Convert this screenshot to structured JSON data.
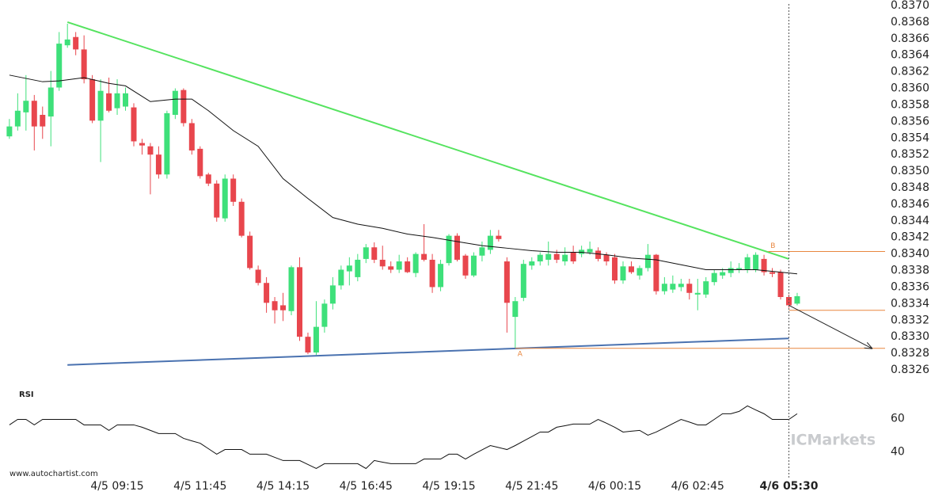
{
  "chart_data": {
    "type": "candlestick",
    "categories": [
      null,
      null,
      null,
      null,
      null,
      null,
      null,
      null,
      null,
      null,
      null,
      null,
      null,
      "4/5 09:15",
      null,
      null,
      null,
      null,
      null,
      null,
      null,
      null,
      null,
      "4/5 11:45",
      null,
      null,
      null,
      null,
      null,
      null,
      null,
      null,
      null,
      "4/5 14:15",
      null,
      null,
      null,
      null,
      null,
      null,
      null,
      null,
      null,
      "4/5 16:45",
      null,
      null,
      null,
      null,
      null,
      null,
      null,
      null,
      null,
      "4/5 19:15",
      null,
      null,
      null,
      null,
      null,
      null,
      null,
      null,
      null,
      "4/5 21:45",
      null,
      null,
      null,
      null,
      null,
      null,
      null,
      null,
      null,
      "4/6 00:15",
      null,
      null,
      null,
      null,
      null,
      null,
      null,
      null,
      null,
      "4/6 02:45",
      null,
      null,
      null,
      null,
      null,
      null,
      null,
      null,
      null,
      null,
      "4/6 05:30",
      null
    ],
    "open": [
      0.83542,
      0.83554,
      0.83571,
      0.83585,
      0.83568,
      0.83566,
      0.83601,
      0.83652,
      0.83662,
      0.83647,
      0.83611,
      0.83561,
      0.83594,
      0.83576,
      0.83578,
      0.83577,
      0.83534,
      0.8353,
      0.8352,
      0.83496,
      0.83568,
      0.83598,
      0.83558,
      0.83527,
      0.83496,
      0.83485,
      0.83443,
      0.83491,
      0.83463,
      0.83422,
      0.83381,
      0.83365,
      0.83343,
      0.83338,
      0.83331,
      0.83384,
      0.833,
      0.83281,
      0.83312,
      0.8334,
      0.83362,
      0.83379,
      0.83372,
      0.83394,
      0.83408,
      0.83393,
      0.83385,
      0.83381,
      0.83391,
      0.83377,
      0.834,
      0.83393,
      0.8336,
      0.83389,
      0.83422,
      0.83398,
      0.83374,
      0.83398,
      0.83405,
      0.83422,
      0.83391,
      0.83324,
      0.83347,
      0.83386,
      0.83391,
      0.83393,
      0.834,
      0.83391,
      0.83402,
      0.834,
      0.83402,
      0.83404,
      0.83399,
      0.83396,
      0.83368,
      0.83385,
      0.83374,
      0.83383,
      0.83399,
      0.83355,
      0.83357,
      0.8336,
      0.83364,
      0.83351,
      0.83351,
      0.83366,
      0.83374,
      0.83377,
      0.83381,
      0.83381,
      0.83381,
      0.83394,
      0.83378,
      0.83378,
      0.83348,
      0.8334
    ],
    "high": [
      0.83563,
      0.83594,
      0.83616,
      0.83592,
      0.83578,
      0.83621,
      0.83668,
      0.83678,
      0.83668,
      0.83664,
      0.83616,
      0.83611,
      0.83613,
      0.83611,
      0.83601,
      0.83582,
      0.83539,
      0.83534,
      0.8353,
      0.83573,
      0.836,
      0.836,
      0.83563,
      0.8353,
      0.83498,
      0.83489,
      0.83496,
      0.83496,
      0.83467,
      0.83427,
      0.83386,
      0.83372,
      0.83348,
      0.83353,
      0.83386,
      0.83396,
      0.83305,
      0.83343,
      0.83345,
      0.83372,
      0.83386,
      0.83396,
      0.834,
      0.83412,
      0.83414,
      0.8341,
      0.83391,
      0.83399,
      0.83396,
      0.83402,
      0.83436,
      0.834,
      0.83393,
      0.83424,
      0.83425,
      0.834,
      0.83402,
      0.83415,
      0.83429,
      0.83429,
      0.83396,
      0.83348,
      0.83393,
      0.83396,
      0.83402,
      0.83415,
      0.83405,
      0.83408,
      0.8341,
      0.8341,
      0.83415,
      0.83408,
      0.83402,
      0.834,
      0.83391,
      0.83391,
      0.83386,
      0.83412,
      0.834,
      0.83372,
      0.83374,
      0.8337,
      0.8337,
      0.8337,
      0.83372,
      0.83381,
      0.83383,
      0.83391,
      0.83389,
      0.834,
      0.83402,
      0.83399,
      0.83383,
      0.83381,
      0.83351,
      0.83353
    ],
    "low": [
      0.83539,
      0.83549,
      0.83549,
      0.83525,
      0.83539,
      0.8353,
      0.83597,
      0.83649,
      0.8364,
      0.83606,
      0.83558,
      0.83511,
      0.83571,
      0.83568,
      0.83573,
      0.8353,
      0.8352,
      0.83472,
      0.83491,
      0.83491,
      0.83563,
      0.83554,
      0.8352,
      0.83491,
      0.83482,
      0.83439,
      0.83439,
      0.83458,
      0.8342,
      0.83381,
      0.83362,
      0.83329,
      0.83316,
      0.83319,
      0.83326,
      0.83295,
      0.83279,
      0.83278,
      0.83305,
      0.83333,
      0.83357,
      0.83362,
      0.83367,
      0.83389,
      0.83389,
      0.83381,
      0.83377,
      0.83377,
      0.83377,
      0.83372,
      0.83391,
      0.83353,
      0.83355,
      0.83386,
      0.83391,
      0.8337,
      0.83372,
      0.83391,
      0.834,
      0.83415,
      0.83305,
      0.83286,
      0.83343,
      0.83381,
      0.83386,
      0.83386,
      0.83389,
      0.83386,
      0.83388,
      0.83396,
      0.83399,
      0.83391,
      0.83386,
      0.83364,
      0.83364,
      0.83376,
      0.83369,
      0.83379,
      0.83351,
      0.83351,
      0.83353,
      0.83355,
      0.83345,
      0.83332,
      0.83347,
      0.83362,
      0.8337,
      0.83372,
      0.83377,
      0.83377,
      0.83378,
      0.83374,
      0.83372,
      0.83345,
      0.83335,
      0.83338
    ],
    "close": [
      0.83554,
      0.83573,
      0.83585,
      0.83554,
      0.83554,
      0.83601,
      0.83654,
      0.83659,
      0.83647,
      0.83611,
      0.83561,
      0.83597,
      0.83573,
      0.83594,
      0.83594,
      0.83536,
      0.83531,
      0.8352,
      0.83496,
      0.8357,
      0.83597,
      0.83558,
      0.83525,
      0.83494,
      0.83485,
      0.83444,
      0.83491,
      0.83463,
      0.83422,
      0.83383,
      0.83365,
      0.83341,
      0.83332,
      0.83332,
      0.83384,
      0.833,
      0.83281,
      0.83312,
      0.8334,
      0.83362,
      0.83381,
      0.83386,
      0.83393,
      0.83408,
      0.83393,
      0.83385,
      0.83381,
      0.83391,
      0.83378,
      0.834,
      0.83393,
      0.8336,
      0.83388,
      0.83422,
      0.83393,
      0.83374,
      0.83398,
      0.83408,
      0.83422,
      0.83418,
      0.83341,
      0.83343,
      0.83388,
      0.83391,
      0.83399,
      0.834,
      0.83393,
      0.83399,
      0.83391,
      0.83405,
      0.83406,
      0.83394,
      0.83391,
      0.83368,
      0.83385,
      0.83378,
      0.83383,
      0.83399,
      0.83355,
      0.83364,
      0.83364,
      0.83364,
      0.83353,
      0.83353,
      0.83367,
      0.83377,
      0.83378,
      0.83383,
      0.83383,
      0.83396,
      0.83399,
      0.83378,
      0.83376,
      0.83348,
      0.83338,
      0.83349
    ],
    "up_color": "#3ee07a",
    "down_color": "#e8464d",
    "xlim": [
      -1,
      105.6
    ],
    "ylim": [
      0.8324,
      0.8371
    ],
    "yticks": [
      0.8326,
      0.8328,
      {
        "value": 0.833,
        "label": "0.8330"
      },
      0.8332,
      0.8334,
      0.8336,
      0.8338,
      {
        "value": 0.834,
        "label": "0.8340"
      },
      0.8342,
      0.8344,
      0.8346,
      0.8348,
      {
        "value": 0.835,
        "label": "0.8350"
      },
      0.8352,
      0.8354,
      0.8356,
      0.8358,
      {
        "value": 0.836,
        "label": "0.8360"
      },
      0.8362,
      0.8364,
      0.8366,
      0.8368,
      {
        "value": 0.837,
        "label": "0.8370"
      }
    ],
    "moving_average": {
      "color": "#111111",
      "x": [
        0,
        4,
        6,
        9,
        12,
        14,
        17,
        20,
        22,
        24,
        27,
        30,
        33,
        36,
        39,
        42,
        45,
        48,
        51,
        54,
        57,
        60,
        63,
        66,
        69,
        72,
        75,
        78,
        81,
        84,
        87,
        90,
        93,
        95
      ],
      "values": [
        0.83616,
        0.83608,
        0.83609,
        0.83613,
        0.83606,
        0.83603,
        0.83584,
        0.83587,
        0.83587,
        0.83573,
        0.83549,
        0.8353,
        0.83491,
        0.83467,
        0.83444,
        0.83436,
        0.83431,
        0.83424,
        0.8342,
        0.83415,
        0.8341,
        0.83407,
        0.83404,
        0.83402,
        0.83402,
        0.83399,
        0.83395,
        0.83393,
        0.83387,
        0.83381,
        0.83381,
        0.83381,
        0.83378,
        0.83376
      ]
    },
    "trendlines": [
      {
        "color": "#55e35f",
        "x": [
          7,
          94
        ],
        "values": [
          0.8368,
          0.83394
        ]
      },
      {
        "color": "#4a72b0",
        "x": [
          7,
          94
        ],
        "values": [
          0.83266,
          0.83298
        ]
      }
    ],
    "levels": [
      {
        "label": "A",
        "from": 61,
        "value": 0.83286,
        "color": "#e8863f"
      },
      {
        "label": "B",
        "from": 91.5,
        "value": 0.83403,
        "color": "#e8863f"
      },
      {
        "from": 94,
        "value": 0.83332,
        "color": "#e8863f"
      }
    ],
    "forecast": {
      "color": "#222222",
      "x": [
        94,
        104
      ],
      "values": [
        0.83338,
        0.83286
      ]
    },
    "rsi": {
      "title": "RSI",
      "color": "#111111",
      "ylim": [
        25,
        78.3
      ],
      "yticks": [
        40,
        60
      ],
      "values": [
        56.2,
        59.5,
        59.5,
        56.2,
        59.5,
        59.5,
        59.5,
        59.5,
        59.5,
        56.2,
        56.2,
        56.2,
        52.9,
        56.2,
        56.2,
        56.2,
        54.8,
        52.9,
        51,
        51,
        51,
        48.1,
        46.6,
        45.2,
        41.9,
        38.6,
        41.4,
        41.4,
        41.4,
        38.6,
        38.6,
        38.6,
        36.7,
        34.8,
        34.8,
        34.8,
        32.4,
        30,
        32.9,
        32.9,
        32.9,
        32.9,
        32.9,
        30,
        34.8,
        33.8,
        32.9,
        32.9,
        32.9,
        32.9,
        35.7,
        35.7,
        35.7,
        38.6,
        38.6,
        35.7,
        38.6,
        41.2,
        43.8,
        42.6,
        41.4,
        43.8,
        46.5,
        49.2,
        51.9,
        51.9,
        54.8,
        55.7,
        56.7,
        56.7,
        56.7,
        59.5,
        57.2,
        54.8,
        51.9,
        52.4,
        52.9,
        50,
        51.9,
        54.4,
        57,
        59.5,
        57.9,
        56.2,
        56.2,
        59.5,
        62.9,
        62.9,
        64.3,
        67.6,
        65.2,
        62.9,
        59.5,
        59.5,
        59.5,
        62.9
      ]
    },
    "source": "www.autochartist.com",
    "watermark": "ICMarkets"
  }
}
